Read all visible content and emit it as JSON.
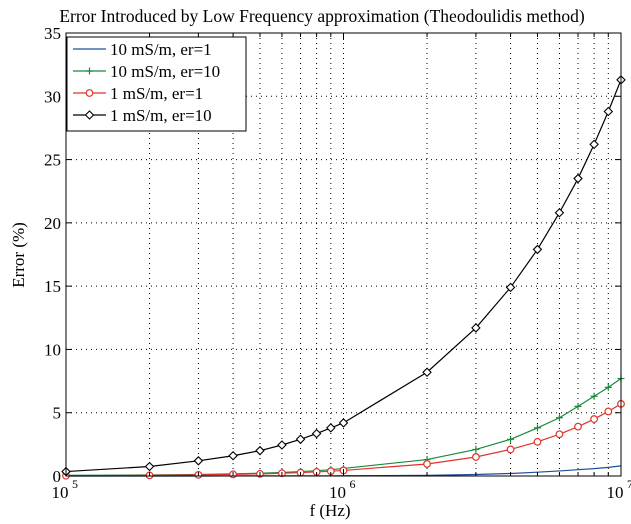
{
  "chart_data": {
    "type": "line",
    "title": "Error Introduced by Low Frequency approximation (Theodoulidis method)",
    "xlabel": "f (Hz)",
    "ylabel": "Error (%)",
    "xscale": "log",
    "xlim": [
      100000,
      10000000
    ],
    "ylim": [
      0,
      35
    ],
    "grid": true,
    "legend_position": "top-left",
    "x_tick_labels": [
      {
        "base": "10",
        "exp": "5"
      },
      {
        "base": "10",
        "exp": "6"
      },
      {
        "base": "10",
        "exp": "7"
      }
    ],
    "y_ticks": [
      0,
      5,
      10,
      15,
      20,
      25,
      30,
      35
    ],
    "x": [
      100000,
      200000,
      300000,
      400000,
      500000,
      600000,
      700000,
      800000,
      900000,
      1000000,
      2000000,
      3000000,
      4000000,
      5000000,
      6000000,
      7000000,
      8000000,
      9000000,
      10000000
    ],
    "series": [
      {
        "name": "10 mS/m, er=1",
        "color": "#1f4e9c",
        "marker": "none",
        "values": [
          0.0,
          0.0,
          0.0,
          0.01,
          0.01,
          0.01,
          0.01,
          0.01,
          0.01,
          0.02,
          0.05,
          0.12,
          0.2,
          0.3,
          0.4,
          0.5,
          0.58,
          0.68,
          0.8
        ]
      },
      {
        "name": "10 mS/m, er=10",
        "color": "#1a8a3a",
        "marker": "plus",
        "values": [
          0.05,
          0.08,
          0.12,
          0.17,
          0.22,
          0.28,
          0.35,
          0.42,
          0.5,
          0.6,
          1.3,
          2.1,
          2.9,
          3.8,
          4.6,
          5.5,
          6.3,
          7.0,
          7.7
        ]
      },
      {
        "name": "1 mS/m, er=1",
        "color": "#e0332a",
        "marker": "circle",
        "values": [
          0.02,
          0.05,
          0.09,
          0.13,
          0.17,
          0.22,
          0.27,
          0.32,
          0.38,
          0.44,
          0.95,
          1.5,
          2.1,
          2.7,
          3.3,
          3.9,
          4.5,
          5.1,
          5.7
        ]
      },
      {
        "name": "1 mS/m, er=10",
        "color": "#000000",
        "marker": "diamond",
        "values": [
          0.35,
          0.75,
          1.2,
          1.6,
          2.0,
          2.45,
          2.9,
          3.35,
          3.8,
          4.2,
          8.2,
          11.7,
          14.9,
          17.9,
          20.8,
          23.5,
          26.2,
          28.8,
          31.3
        ]
      }
    ]
  }
}
